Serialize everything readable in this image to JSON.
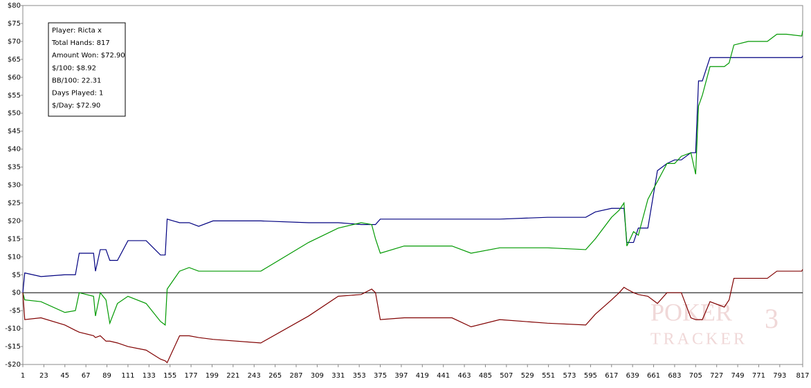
{
  "chart_data": {
    "type": "line",
    "info_box": [
      "Player: Ricta x",
      "Total Hands: 817",
      "Amount Won: $72.90",
      "$/100: $8.92",
      "BB/100: 22.31",
      "Days Played: 1",
      "$/Day: $72.90"
    ],
    "watermark": [
      "POKER",
      "TRACKER",
      "3"
    ],
    "x": [
      1,
      3,
      20,
      45,
      56,
      60,
      75,
      77,
      82,
      88,
      92,
      100,
      111,
      130,
      145,
      150,
      152,
      165,
      175,
      185,
      200,
      250,
      300,
      331,
      355,
      366,
      370,
      375,
      400,
      450,
      470,
      500,
      550,
      590,
      600,
      617,
      625,
      630,
      633,
      640,
      645,
      655,
      665,
      675,
      683,
      690,
      700,
      705,
      708,
      712,
      720,
      735,
      740,
      745,
      760,
      780,
      790,
      800,
      816,
      817
    ],
    "series": [
      {
        "color": "#000080",
        "values": [
          0,
          5.5,
          4.5,
          5,
          5,
          11,
          11,
          6,
          12,
          12,
          9,
          9,
          14.5,
          14.5,
          10.5,
          10.5,
          20.5,
          19.5,
          19.5,
          18.5,
          20,
          20,
          19.5,
          19.5,
          19,
          19,
          19,
          20.5,
          20.5,
          20.5,
          20.5,
          20.5,
          21,
          21,
          22.5,
          23.5,
          23.5,
          23.5,
          14,
          14,
          18,
          18,
          34,
          36,
          37,
          37,
          39,
          39,
          59,
          59,
          65.5,
          65.5,
          65.5,
          65.5,
          65.5,
          65.5,
          65.5,
          65.5,
          65.5,
          66
        ]
      },
      {
        "color": "#009900",
        "values": [
          0,
          -2,
          -2.5,
          -5.5,
          -5,
          0,
          -1,
          -6.5,
          0,
          -2,
          -8.5,
          -3,
          -1,
          -3,
          -8,
          -9,
          1,
          6,
          7,
          6,
          6,
          6,
          14,
          18,
          19.5,
          19,
          15,
          11,
          13,
          13,
          11,
          12.5,
          12.5,
          12,
          15,
          21,
          23,
          25,
          13,
          17,
          16,
          26,
          31,
          36,
          36,
          38,
          39,
          33,
          52,
          55,
          63,
          63,
          64,
          69,
          70,
          70,
          72,
          72,
          71.5,
          73
        ]
      },
      {
        "color": "#800000",
        "values": [
          0,
          -7.5,
          -7,
          -9,
          -10.5,
          -11,
          -12,
          -12.5,
          -12,
          -13.5,
          -13.5,
          -14,
          -15,
          -16,
          -18.5,
          -19,
          -19.5,
          -12,
          -12,
          -12.5,
          -13,
          -14,
          -6.5,
          -1,
          -0.5,
          1,
          0,
          -7.5,
          -7,
          -7,
          -9.5,
          -7.5,
          -8.5,
          -9,
          -6,
          -2,
          0,
          1.5,
          1,
          0,
          -0.5,
          -1,
          -3,
          0,
          0,
          0,
          -7,
          -7.5,
          -7.5,
          -7.5,
          -2.5,
          -4,
          -2,
          4,
          4,
          4,
          6,
          6,
          6,
          6.5
        ]
      }
    ],
    "xlim": [
      1,
      817
    ],
    "xticks": [
      1,
      23,
      45,
      67,
      89,
      111,
      133,
      155,
      177,
      199,
      221,
      243,
      265,
      287,
      309,
      331,
      353,
      375,
      397,
      419,
      441,
      463,
      485,
      507,
      529,
      551,
      573,
      595,
      617,
      639,
      661,
      683,
      705,
      727,
      749,
      771,
      793,
      817
    ],
    "ylim": [
      -20,
      80
    ],
    "yticks": [
      {
        "value": 80,
        "label": "$80"
      },
      {
        "value": 75,
        "label": "$75"
      },
      {
        "value": 70,
        "label": "$70"
      },
      {
        "value": 65,
        "label": "$65"
      },
      {
        "value": 60,
        "label": "$60"
      },
      {
        "value": 55,
        "label": "$55"
      },
      {
        "value": 50,
        "label": "$50"
      },
      {
        "value": 45,
        "label": "$45"
      },
      {
        "value": 40,
        "label": "$40"
      },
      {
        "value": 35,
        "label": "$35"
      },
      {
        "value": 30,
        "label": "$30"
      },
      {
        "value": 25,
        "label": "$25"
      },
      {
        "value": 20,
        "label": "$20"
      },
      {
        "value": 15,
        "label": "$15"
      },
      {
        "value": 10,
        "label": "$10"
      },
      {
        "value": 5,
        "label": "$5"
      },
      {
        "value": 0,
        "label": "$0"
      },
      {
        "value": -5,
        "label": "-$5"
      },
      {
        "value": -10,
        "label": "-$10"
      },
      {
        "value": -15,
        "label": "-$15"
      },
      {
        "value": -20,
        "label": "-$20"
      }
    ],
    "grid": false
  }
}
